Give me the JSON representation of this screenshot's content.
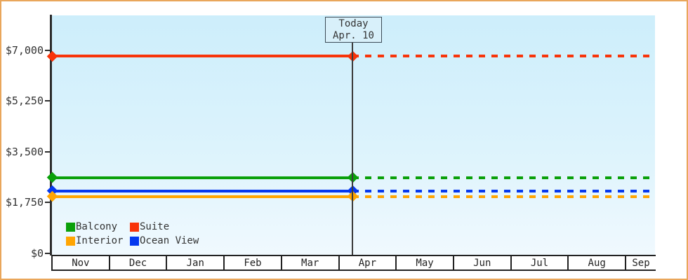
{
  "frame": {
    "background": "#FFFFFF",
    "border_color": "#E9A65B"
  },
  "chart_data": {
    "type": "line",
    "title": "",
    "x_axis": {
      "months": [
        "Nov",
        "Dec",
        "Jan",
        "Feb",
        "Mar",
        "Apr",
        "May",
        "Jun",
        "Jul",
        "Aug",
        "Sep"
      ]
    },
    "y_axis": {
      "range": [
        0,
        7250
      ],
      "ticks": [
        {
          "label": "$7,000",
          "value": 7000
        },
        {
          "label": "$5,250",
          "value": 5250
        },
        {
          "label": "$3,500",
          "value": 3500
        },
        {
          "label": "$1,750",
          "value": 1750
        },
        {
          "label": "$0",
          "value": 0
        }
      ]
    },
    "today": {
      "line1": "Today",
      "line2": "Apr. 10"
    },
    "line_style": {
      "before_today": "solid",
      "after_today": "dashed",
      "marker": "diamond"
    },
    "series": [
      {
        "name": "Suite",
        "color": "#F8340A",
        "value": 6800
      },
      {
        "name": "Balcony",
        "color": "#0AA00A",
        "value": 2600
      },
      {
        "name": "Ocean View",
        "color": "#0538EF",
        "value": 2150
      },
      {
        "name": "Interior",
        "color": "#FFA502",
        "value": 1950
      }
    ],
    "legend": {
      "position": "bottom-left",
      "items": [
        {
          "label": "Balcony",
          "color": "#0AA00A"
        },
        {
          "label": "Suite",
          "color": "#F8340A"
        },
        {
          "label": "Interior",
          "color": "#FFA502"
        },
        {
          "label": "Ocean View",
          "color": "#0538EF"
        }
      ]
    }
  }
}
